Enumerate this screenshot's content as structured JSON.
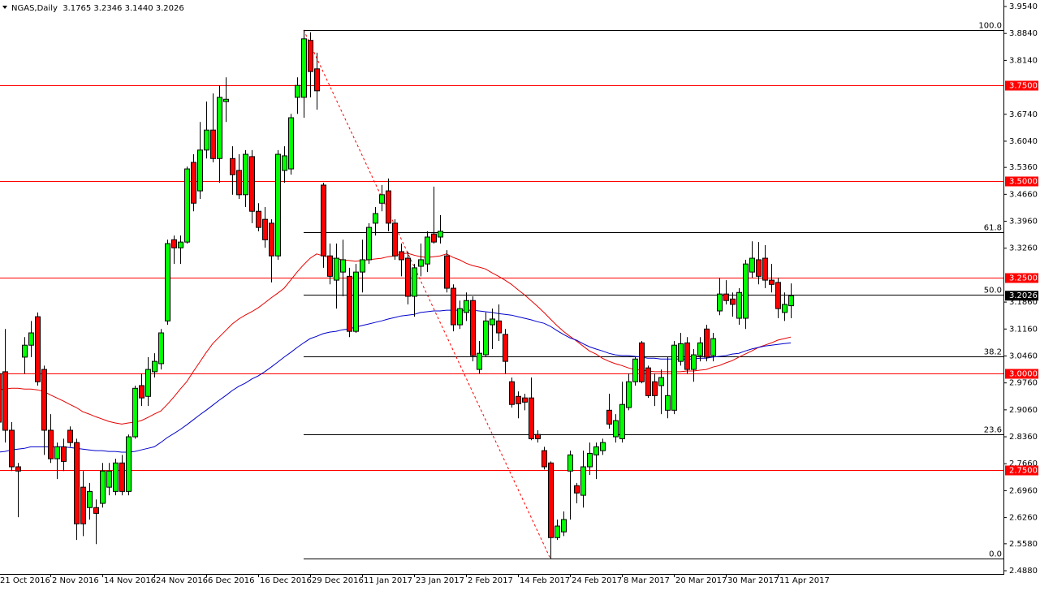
{
  "chart_data": {
    "type": "candlestick",
    "legend_text": "NGAS,Daily  3.1765 3.2346 3.1440 3.2026",
    "categories": [
      "21 Oct 2016",
      null,
      null,
      null,
      null,
      null,
      null,
      null,
      "2 Nov 2016",
      null,
      null,
      null,
      null,
      null,
      null,
      null,
      "14 Nov 2016",
      null,
      null,
      null,
      null,
      null,
      null,
      null,
      "24 Nov 2016",
      null,
      null,
      null,
      null,
      null,
      null,
      null,
      "6 Dec 2016",
      null,
      null,
      null,
      null,
      null,
      null,
      null,
      "16 Dec 2016",
      null,
      null,
      null,
      null,
      null,
      null,
      null,
      "29 Dec 2016",
      null,
      null,
      null,
      null,
      null,
      null,
      null,
      "11 Jan 2017",
      null,
      null,
      null,
      null,
      null,
      null,
      null,
      "23 Jan 2017",
      null,
      null,
      null,
      null,
      null,
      null,
      null,
      "2 Feb 2017",
      null,
      null,
      null,
      null,
      null,
      null,
      null,
      "14 Feb 2017",
      null,
      null,
      null,
      null,
      null,
      null,
      null,
      "24 Feb 2017",
      null,
      null,
      null,
      null,
      null,
      null,
      null,
      "8 Mar 2017",
      null,
      null,
      null,
      null,
      null,
      null,
      null,
      "20 Mar 2017",
      null,
      null,
      null,
      null,
      null,
      null,
      null,
      "30 Mar 2017",
      null,
      null,
      null,
      null,
      null,
      null,
      null,
      "11 Apr 2017",
      null,
      null
    ],
    "open": [
      3.0,
      3.005,
      2.853,
      2.758,
      3.043,
      3.074,
      3.148,
      3.011,
      2.853,
      2.779,
      2.81,
      2.853,
      2.821,
      2.705,
      2.652,
      2.652,
      2.663,
      2.705,
      2.694,
      2.768,
      2.694,
      2.836,
      2.969,
      2.941,
      3.005,
      3.026,
      3.137,
      3.348,
      3.327,
      3.342,
      3.549,
      3.475,
      3.581,
      3.633,
      3.559,
      3.707,
      3.559,
      3.528,
      3.465,
      3.564,
      3.422,
      3.401,
      3.391,
      3.306,
      3.528,
      3.532,
      3.718,
      3.718,
      3.866,
      3.792,
      3.49,
      3.306,
      3.243,
      3.264,
      3.253,
      3.11,
      3.264,
      3.296,
      3.391,
      3.443,
      3.475,
      3.391,
      3.317,
      3.3,
      3.201,
      3.279,
      3.285,
      3.363,
      3.355,
      3.306,
      3.222,
      3.127,
      3.159,
      3.19,
      3.011,
      3.049,
      3.127,
      3.137,
      3.102,
      2.979,
      2.941,
      2.937,
      2.937,
      2.842,
      2.8,
      2.768,
      2.574,
      2.589,
      2.747,
      2.709,
      2.684,
      2.758,
      2.789,
      2.8,
      2.905,
      2.836,
      2.831,
      2.912,
      2.979,
      3.08,
      3.015,
      2.979,
      2.969,
      2.905,
      2.905,
      3.032,
      3.08,
      3.011,
      3.047,
      3.116,
      3.047,
      3.163,
      3.207,
      3.194,
      3.144,
      3.144,
      3.264,
      3.296,
      3.3,
      3.243,
      3.237,
      3.159,
      3.1765
    ],
    "high": [
      3.011,
      3.116,
      2.874,
      2.768,
      3.095,
      3.137,
      3.159,
      3.021,
      2.895,
      2.821,
      2.831,
      2.863,
      2.831,
      2.747,
      2.716,
      2.673,
      2.768,
      2.768,
      2.779,
      2.789,
      2.842,
      2.969,
      3.0,
      3.043,
      3.053,
      3.116,
      3.348,
      3.359,
      3.359,
      3.538,
      3.57,
      3.654,
      3.707,
      3.728,
      3.749,
      3.77,
      3.591,
      3.57,
      3.581,
      3.581,
      3.443,
      3.433,
      3.401,
      3.581,
      3.591,
      3.675,
      3.77,
      3.893,
      3.887,
      3.834,
      3.496,
      3.338,
      3.338,
      3.348,
      3.275,
      3.285,
      3.348,
      3.391,
      3.433,
      3.49,
      3.507,
      3.401,
      3.338,
      3.317,
      3.285,
      3.338,
      3.37,
      3.486,
      3.412,
      3.321,
      3.232,
      3.19,
      3.211,
      3.201,
      3.085,
      3.159,
      3.169,
      3.18,
      3.116,
      2.99,
      2.954,
      2.948,
      2.99,
      2.853,
      2.81,
      2.772,
      2.621,
      2.642,
      2.8,
      2.716,
      2.8,
      2.821,
      2.821,
      2.831,
      2.948,
      2.895,
      2.979,
      3.0,
      3.043,
      3.085,
      3.021,
      3.0,
      3.011,
      3.043,
      3.085,
      3.106,
      3.095,
      3.064,
      3.095,
      3.127,
      3.106,
      3.249,
      3.243,
      3.211,
      3.222,
      3.296,
      3.344,
      3.342,
      3.334,
      3.285,
      3.249,
      3.211,
      3.2346
    ],
    "low": [
      2.831,
      2.821,
      2.747,
      2.627,
      3.0,
      3.043,
      2.969,
      2.789,
      2.768,
      2.726,
      2.747,
      2.81,
      2.568,
      2.578,
      2.621,
      2.557,
      2.652,
      2.684,
      2.684,
      2.684,
      2.684,
      2.831,
      2.916,
      2.916,
      2.99,
      3.011,
      3.127,
      3.285,
      3.285,
      3.338,
      3.422,
      3.454,
      3.559,
      3.549,
      3.496,
      3.654,
      3.465,
      3.454,
      3.433,
      3.391,
      3.37,
      3.327,
      3.237,
      3.296,
      3.496,
      3.517,
      3.675,
      3.665,
      3.718,
      3.686,
      3.275,
      3.232,
      3.169,
      3.201,
      3.095,
      3.106,
      3.211,
      3.285,
      3.359,
      3.422,
      3.37,
      3.296,
      3.253,
      3.18,
      3.148,
      3.253,
      3.264,
      3.338,
      3.338,
      3.211,
      3.11,
      3.116,
      3.137,
      3.032,
      3.0,
      3.043,
      3.064,
      3.085,
      3.0,
      2.912,
      2.884,
      2.905,
      2.827,
      2.821,
      2.751,
      2.519,
      2.568,
      2.578,
      2.621,
      2.663,
      2.652,
      2.737,
      2.726,
      2.789,
      2.857,
      2.821,
      2.821,
      2.905,
      2.969,
      2.975,
      2.937,
      2.916,
      2.895,
      2.884,
      2.895,
      3.021,
      3.0,
      2.979,
      3.032,
      3.032,
      3.032,
      3.152,
      3.18,
      3.148,
      3.127,
      3.116,
      3.249,
      3.232,
      3.222,
      3.211,
      3.144,
      3.137,
      3.144
    ],
    "close": [
      2.874,
      2.853,
      2.758,
      2.747,
      3.074,
      3.106,
      2.979,
      2.853,
      2.779,
      2.81,
      2.772,
      2.821,
      2.61,
      2.61,
      2.694,
      2.637,
      2.747,
      2.747,
      2.768,
      2.694,
      2.836,
      2.962,
      2.937,
      3.011,
      3.032,
      3.106,
      3.338,
      3.327,
      3.342,
      3.532,
      3.443,
      3.581,
      3.633,
      3.559,
      3.718,
      3.713,
      3.517,
      3.465,
      3.57,
      3.422,
      3.38,
      3.348,
      3.306,
      3.57,
      3.566,
      3.665,
      3.749,
      3.87,
      3.785,
      3.735,
      3.306,
      3.253,
      3.3,
      3.296,
      3.11,
      3.264,
      3.296,
      3.38,
      3.416,
      3.465,
      3.391,
      3.306,
      3.296,
      3.201,
      3.275,
      3.296,
      3.355,
      3.342,
      3.37,
      3.222,
      3.127,
      3.169,
      3.19,
      3.047,
      3.053,
      3.137,
      3.142,
      3.106,
      3.032,
      2.92,
      2.922,
      2.926,
      2.831,
      2.831,
      2.758,
      2.574,
      2.604,
      2.621,
      2.789,
      2.69,
      2.758,
      2.793,
      2.81,
      2.821,
      2.869,
      2.878,
      2.92,
      2.979,
      3.038,
      2.979,
      2.943,
      2.943,
      2.99,
      2.943,
      3.074,
      3.078,
      3.011,
      3.049,
      3.08,
      3.043,
      3.091,
      3.207,
      3.19,
      3.18,
      3.211,
      3.285,
      3.3,
      3.253,
      3.243,
      3.232,
      3.169,
      3.18,
      3.2026
    ],
    "up_color": "#00ff00",
    "down_color": "#ff0000",
    "overlays": [
      {
        "color": "#e60000",
        "values": [
          2.958,
          2.96,
          2.962,
          2.962,
          2.96,
          2.96,
          2.958,
          2.954,
          2.945,
          2.937,
          2.929,
          2.92,
          2.912,
          2.901,
          2.895,
          2.888,
          2.882,
          2.876,
          2.872,
          2.869,
          2.872,
          2.874,
          2.878,
          2.886,
          2.895,
          2.903,
          2.92,
          2.939,
          2.96,
          2.979,
          3.005,
          3.03,
          3.055,
          3.078,
          3.095,
          3.112,
          3.129,
          3.142,
          3.152,
          3.161,
          3.171,
          3.184,
          3.197,
          3.209,
          3.222,
          3.243,
          3.264,
          3.283,
          3.3,
          3.311,
          3.306,
          3.302,
          3.298,
          3.296,
          3.294,
          3.292,
          3.294,
          3.296,
          3.298,
          3.3,
          3.304,
          3.306,
          3.311,
          3.313,
          3.308,
          3.304,
          3.302,
          3.304,
          3.306,
          3.311,
          3.302,
          3.296,
          3.287,
          3.281,
          3.277,
          3.272,
          3.262,
          3.253,
          3.243,
          3.232,
          3.218,
          3.205,
          3.19,
          3.175,
          3.159,
          3.142,
          3.125,
          3.11,
          3.097,
          3.085,
          3.072,
          3.059,
          3.051,
          3.04,
          3.032,
          3.026,
          3.021,
          3.015,
          3.011,
          3.009,
          3.007,
          3.005,
          3.005,
          3.005,
          3.005,
          3.005,
          3.007,
          3.007,
          3.009,
          3.011,
          3.017,
          3.021,
          3.028,
          3.034,
          3.043,
          3.051,
          3.059,
          3.068,
          3.074,
          3.08,
          3.087,
          3.091,
          3.095
        ]
      },
      {
        "color": "#0000cc",
        "values": [
          2.796,
          2.798,
          2.802,
          2.804,
          2.806,
          2.81,
          2.81,
          2.81,
          2.81,
          2.81,
          2.81,
          2.808,
          2.806,
          2.804,
          2.802,
          2.8,
          2.8,
          2.798,
          2.798,
          2.796,
          2.796,
          2.798,
          2.802,
          2.806,
          2.81,
          2.821,
          2.834,
          2.844,
          2.855,
          2.867,
          2.88,
          2.893,
          2.905,
          2.918,
          2.931,
          2.943,
          2.956,
          2.967,
          2.975,
          2.986,
          2.994,
          3.005,
          3.017,
          3.03,
          3.043,
          3.055,
          3.068,
          3.08,
          3.091,
          3.097,
          3.104,
          3.108,
          3.11,
          3.114,
          3.116,
          3.121,
          3.125,
          3.129,
          3.133,
          3.137,
          3.142,
          3.146,
          3.15,
          3.152,
          3.154,
          3.159,
          3.161,
          3.163,
          3.163,
          3.165,
          3.165,
          3.165,
          3.165,
          3.165,
          3.163,
          3.161,
          3.159,
          3.156,
          3.154,
          3.152,
          3.148,
          3.144,
          3.14,
          3.135,
          3.131,
          3.123,
          3.112,
          3.102,
          3.093,
          3.087,
          3.078,
          3.07,
          3.064,
          3.059,
          3.053,
          3.049,
          3.047,
          3.047,
          3.045,
          3.043,
          3.04,
          3.04,
          3.038,
          3.038,
          3.038,
          3.038,
          3.038,
          3.038,
          3.04,
          3.04,
          3.043,
          3.045,
          3.047,
          3.051,
          3.053,
          3.059,
          3.064,
          3.068,
          3.072,
          3.074,
          3.076,
          3.078,
          3.08
        ]
      }
    ],
    "levels": [
      {
        "value": 3.75,
        "label": "3.7500"
      },
      {
        "value": 3.5,
        "label": "3.5000"
      },
      {
        "value": 3.25,
        "label": "3.2500"
      },
      {
        "value": 3.0,
        "label": "3.0000"
      },
      {
        "value": 2.75,
        "label": "2.7500"
      }
    ],
    "level_color": "#ff0000",
    "fibonacci": [
      {
        "value": 3.893,
        "label": "100.0"
      },
      {
        "value": 3.368,
        "label": "61.8"
      },
      {
        "value": 3.206,
        "label": "50.0"
      },
      {
        "value": 3.044,
        "label": "38.2"
      },
      {
        "value": 2.843,
        "label": "23.6"
      },
      {
        "value": 2.519,
        "label": "0.0"
      }
    ],
    "ylim": [
      2.4796,
      3.9709
    ],
    "yticks": [
      {
        "value": 3.954,
        "label": "3.9540"
      },
      {
        "value": 3.884,
        "label": "3.8840"
      },
      {
        "value": 3.814,
        "label": "3.8140"
      },
      {
        "value": 3.674,
        "label": "3.6740"
      },
      {
        "value": 3.604,
        "label": "3.6040"
      },
      {
        "value": 3.536,
        "label": "3.5360"
      },
      {
        "value": 3.466,
        "label": "3.4660"
      },
      {
        "value": 3.396,
        "label": "3.3960"
      },
      {
        "value": 3.326,
        "label": "3.3260"
      },
      {
        "value": 3.186,
        "label": "3.1860"
      },
      {
        "value": 3.116,
        "label": "3.1160"
      },
      {
        "value": 3.046,
        "label": "3.0460"
      },
      {
        "value": 2.976,
        "label": "2.9760"
      },
      {
        "value": 2.906,
        "label": "2.9060"
      },
      {
        "value": 2.836,
        "label": "2.8360"
      },
      {
        "value": 2.766,
        "label": "2.7660"
      },
      {
        "value": 2.696,
        "label": "2.6960"
      },
      {
        "value": 2.626,
        "label": "2.6260"
      },
      {
        "value": 2.558,
        "label": "2.5580"
      },
      {
        "value": 2.488,
        "label": "2.4880"
      }
    ],
    "grid": false
  }
}
